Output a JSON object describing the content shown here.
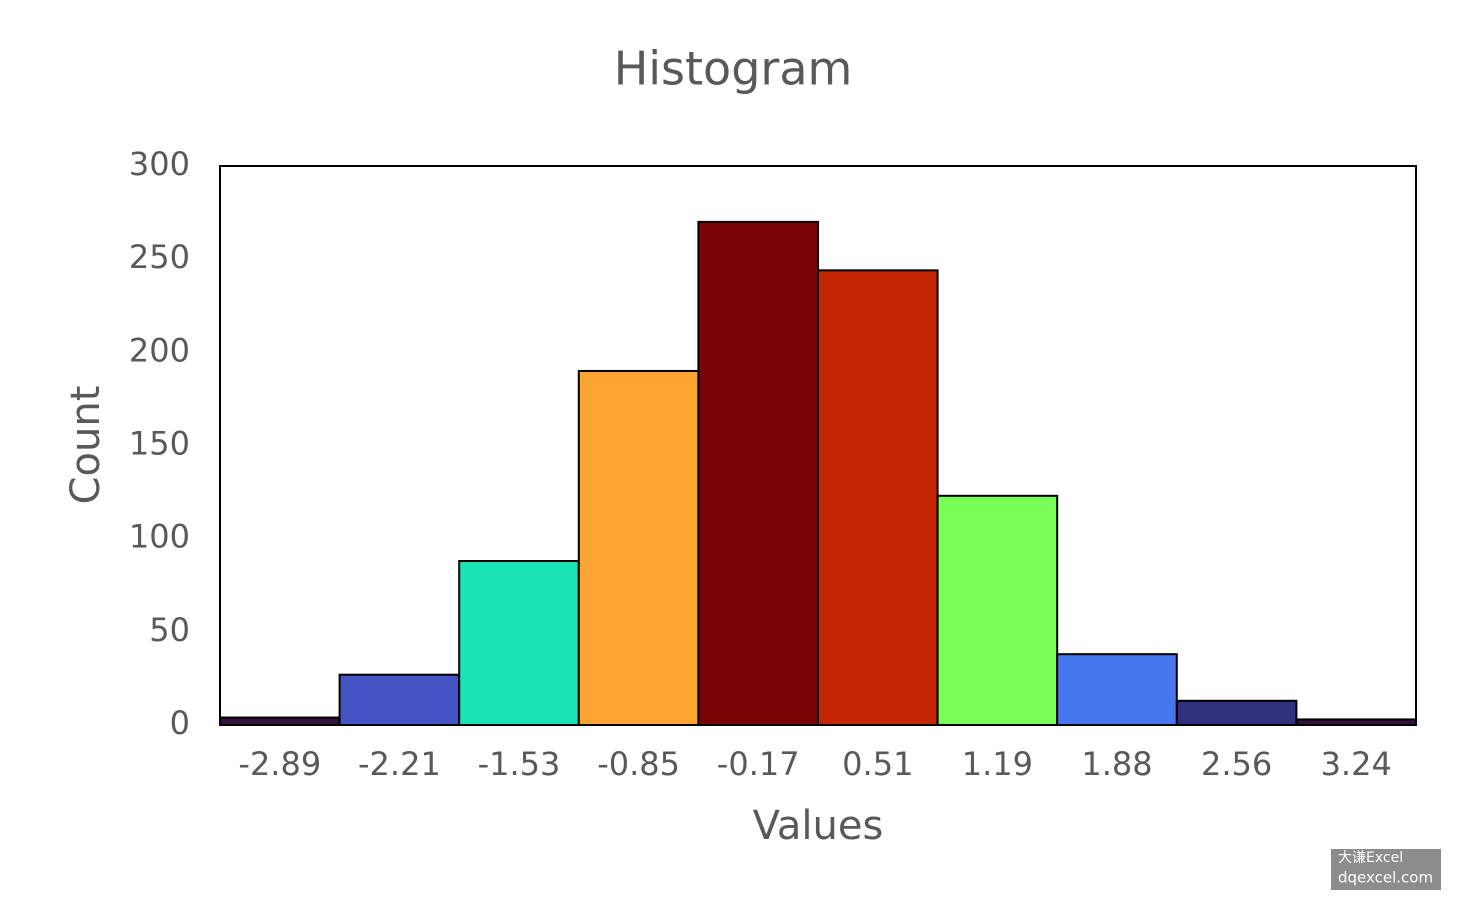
{
  "chart_data": {
    "type": "bar",
    "title": "Histogram",
    "x_label": "Values",
    "y_label": "Count",
    "categories": [
      "-2.89",
      "-2.21",
      "-1.53",
      "-0.85",
      "-0.17",
      "0.51",
      "1.19",
      "1.88",
      "2.56",
      "3.24"
    ],
    "values": [
      4,
      27,
      88,
      190,
      270,
      244,
      123,
      38,
      13,
      3
    ],
    "colors": [
      "#30123b",
      "#4454c4",
      "#1ae4b6",
      "#fba432",
      "#7a0403",
      "#c42503",
      "#7afe58",
      "#4777ef",
      "#30317e",
      "#30123b"
    ],
    "ylim": [
      0,
      300
    ],
    "yticks": [
      0,
      50,
      100,
      150,
      200,
      250,
      300
    ],
    "grid": false,
    "watermark": [
      "大谦Excel",
      "dqexcel.com"
    ]
  }
}
